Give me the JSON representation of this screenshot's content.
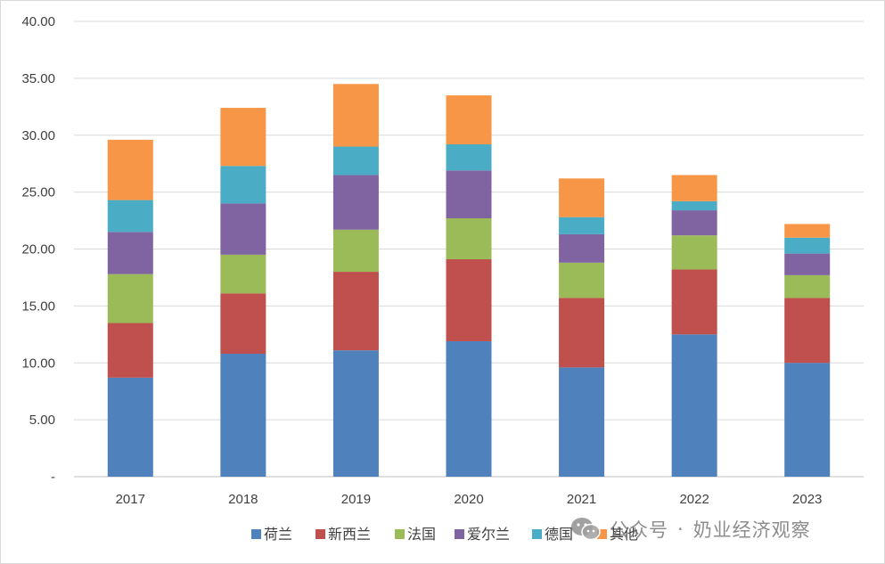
{
  "chart_data": {
    "type": "stacked-bar",
    "categories": [
      "2017",
      "2018",
      "2019",
      "2020",
      "2021",
      "2022",
      "2023"
    ],
    "series": [
      {
        "name": "荷兰",
        "color": "#4F81BD",
        "values": [
          8.7,
          10.8,
          11.1,
          11.9,
          9.6,
          12.5,
          10.0
        ]
      },
      {
        "name": "新西兰",
        "color": "#C0504D",
        "values": [
          4.8,
          5.3,
          6.9,
          7.2,
          6.1,
          5.7,
          5.7
        ]
      },
      {
        "name": "法国",
        "color": "#9BBB59",
        "values": [
          4.3,
          3.4,
          3.7,
          3.6,
          3.1,
          3.0,
          2.0
        ]
      },
      {
        "name": "爱尔兰",
        "color": "#8064A2",
        "values": [
          3.7,
          4.5,
          4.8,
          4.2,
          2.5,
          2.2,
          1.9
        ]
      },
      {
        "name": "德国",
        "color": "#4BACC6",
        "values": [
          2.8,
          3.3,
          2.5,
          2.3,
          1.5,
          0.8,
          1.4
        ]
      },
      {
        "name": "其他",
        "color": "#F79646",
        "values": [
          5.3,
          5.1,
          5.5,
          4.3,
          3.4,
          2.3,
          1.2
        ]
      }
    ],
    "y_ticks": [
      "-",
      "5.00",
      "10.00",
      "15.00",
      "20.00",
      "25.00",
      "30.00",
      "35.00",
      "40.00"
    ],
    "ylim": [
      0,
      40
    ],
    "grid": true,
    "legend_position": "bottom-center",
    "title": "",
    "xlabel": "",
    "ylabel": ""
  },
  "watermark": {
    "icon": "wechat-icon",
    "prefix": "公众号",
    "separator": "·",
    "name": "奶业经济观察"
  }
}
